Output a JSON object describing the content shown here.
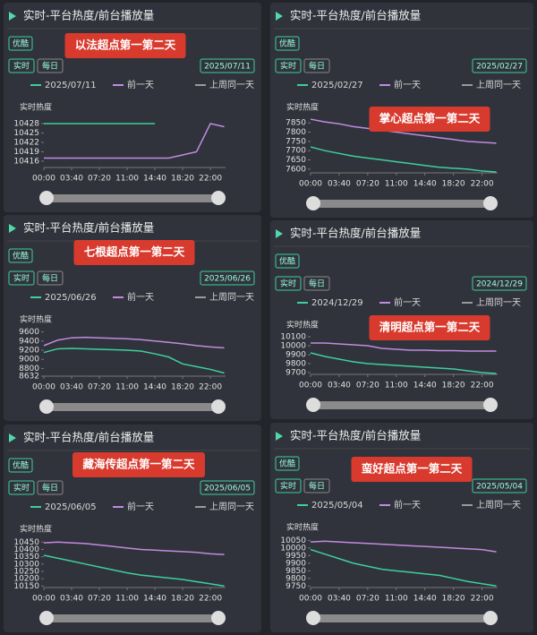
{
  "chart_data": [
    {
      "type": "line",
      "header": "实时-平台热度/前台播放量",
      "platform": "优酷",
      "modes": [
        "实时",
        "每日"
      ],
      "annotation": "以法超点第一第二天",
      "ylabel": "实时热度",
      "x": [
        0,
        110,
        220,
        330,
        440,
        550,
        660,
        770,
        880,
        990,
        1100,
        1210,
        1320,
        1430
      ],
      "xlim": [
        0,
        1440
      ],
      "xticks": [
        {
          "value": 0,
          "label": "00:00"
        },
        {
          "value": 220,
          "label": "03:40"
        },
        {
          "value": 440,
          "label": "07:20"
        },
        {
          "value": 660,
          "label": "11:00"
        },
        {
          "value": 880,
          "label": "14:40"
        },
        {
          "value": 1100,
          "label": "18:20"
        },
        {
          "value": 1320,
          "label": "22:00"
        }
      ],
      "ylim": [
        10414,
        10430
      ],
      "yticks": [
        10416,
        10419,
        10422,
        10425,
        10428
      ],
      "series": [
        {
          "name": "2025/07/11",
          "color": "#3ecf9e",
          "values": [
            10428,
            10428,
            10428,
            10428,
            10428,
            10428,
            10428,
            10428,
            10428,
            null,
            null,
            null,
            null,
            null
          ]
        },
        {
          "name": "前一天",
          "color": "#c08be0",
          "values": [
            10417,
            10417,
            10417,
            10417,
            10417,
            10417,
            10417,
            10417,
            10417,
            10417,
            10418,
            10419,
            10428,
            10427
          ]
        },
        {
          "name": "上周同一天",
          "color": "#9a9a9a",
          "values": [
            null,
            null,
            null,
            null,
            null,
            null,
            null,
            null,
            null,
            null,
            null,
            null,
            null,
            null
          ]
        }
      ]
    },
    {
      "type": "line",
      "header": "实时-平台热度/前台播放量",
      "platform": "优酷",
      "modes": [
        "实时",
        "每日"
      ],
      "annotation": "掌心超点第一第二天",
      "ylabel": "实时热度",
      "x": [
        0,
        110,
        220,
        330,
        440,
        550,
        660,
        770,
        880,
        990,
        1100,
        1210,
        1320,
        1430
      ],
      "xlim": [
        0,
        1440
      ],
      "xticks": [
        {
          "value": 0,
          "label": "00:00"
        },
        {
          "value": 220,
          "label": "03:40"
        },
        {
          "value": 440,
          "label": "07:20"
        },
        {
          "value": 660,
          "label": "11:00"
        },
        {
          "value": 880,
          "label": "14:40"
        },
        {
          "value": 1100,
          "label": "18:20"
        },
        {
          "value": 1320,
          "label": "22:00"
        }
      ],
      "ylim": [
        7580,
        7880
      ],
      "yticks": [
        7600,
        7650,
        7700,
        7750,
        7800,
        7850
      ],
      "series": [
        {
          "name": "2025/02/27",
          "color": "#3ecf9e",
          "values": [
            7720,
            7700,
            7685,
            7670,
            7660,
            7650,
            7640,
            7630,
            7620,
            7610,
            7605,
            7600,
            7590,
            7585
          ]
        },
        {
          "name": "前一天",
          "color": "#c08be0",
          "values": [
            7870,
            7855,
            7845,
            7830,
            7820,
            7810,
            7800,
            7790,
            7780,
            7770,
            7760,
            7750,
            7745,
            7740
          ]
        },
        {
          "name": "上周同一天",
          "color": "#9a9a9a",
          "values": [
            null,
            null,
            null,
            null,
            null,
            null,
            null,
            null,
            null,
            null,
            null,
            null,
            null,
            null
          ]
        }
      ]
    },
    {
      "type": "line",
      "header": "实时-平台热度/前台播放量",
      "platform": "优酷",
      "modes": [
        "实时",
        "每日"
      ],
      "annotation": "七根超点第一第二天",
      "ylabel": "实时热度",
      "x": [
        0,
        110,
        220,
        330,
        440,
        550,
        660,
        770,
        880,
        990,
        1100,
        1210,
        1320,
        1430
      ],
      "xlim": [
        0,
        1440
      ],
      "xticks": [
        {
          "value": 0,
          "label": "00:00"
        },
        {
          "value": 220,
          "label": "03:40"
        },
        {
          "value": 440,
          "label": "07:20"
        },
        {
          "value": 660,
          "label": "11:00"
        },
        {
          "value": 880,
          "label": "14:40"
        },
        {
          "value": 1100,
          "label": "18:20"
        },
        {
          "value": 1320,
          "label": "22:00"
        }
      ],
      "ylim": [
        8632,
        9650
      ],
      "yticks": [
        8632,
        8800,
        9000,
        9200,
        9400,
        9600
      ],
      "series": [
        {
          "name": "2025/06/26",
          "color": "#3ecf9e",
          "values": [
            9150,
            9230,
            9240,
            9230,
            9220,
            9210,
            9200,
            9180,
            9120,
            9050,
            8900,
            8840,
            8780,
            8700
          ]
        },
        {
          "name": "前一天",
          "color": "#c08be0",
          "values": [
            9300,
            9420,
            9470,
            9480,
            9470,
            9460,
            9450,
            9430,
            9400,
            9370,
            9340,
            9300,
            9270,
            9250
          ]
        },
        {
          "name": "上周同一天",
          "color": "#9a9a9a",
          "values": [
            null,
            null,
            null,
            null,
            null,
            null,
            null,
            null,
            null,
            null,
            null,
            null,
            null,
            null
          ]
        }
      ]
    },
    {
      "type": "line",
      "header": "实时-平台热度/前台播放量",
      "platform": "优酷",
      "modes": [
        "实时",
        "每日"
      ],
      "annotation": "清明超点第一第二天",
      "ylabel": "实时热度",
      "x": [
        0,
        110,
        220,
        330,
        440,
        550,
        660,
        770,
        880,
        990,
        1100,
        1210,
        1320,
        1430
      ],
      "xlim": [
        0,
        1440
      ],
      "xticks": [
        {
          "value": 0,
          "label": "00:00"
        },
        {
          "value": 220,
          "label": "03:40"
        },
        {
          "value": 440,
          "label": "07:20"
        },
        {
          "value": 660,
          "label": "11:00"
        },
        {
          "value": 880,
          "label": "14:40"
        },
        {
          "value": 1100,
          "label": "18:20"
        },
        {
          "value": 1320,
          "label": "22:00"
        }
      ],
      "ylim": [
        9680,
        10120
      ],
      "yticks": [
        9700,
        9800,
        9900,
        10000,
        10100
      ],
      "series": [
        {
          "name": "2024/12/29",
          "color": "#3ecf9e",
          "values": [
            9920,
            9880,
            9850,
            9820,
            9800,
            9790,
            9780,
            9770,
            9760,
            9750,
            9740,
            9720,
            9700,
            9690
          ]
        },
        {
          "name": "前一天",
          "color": "#c08be0",
          "values": [
            10030,
            10030,
            10020,
            10010,
            10000,
            9970,
            9960,
            9950,
            9950,
            9945,
            9945,
            9940,
            9940,
            9940
          ]
        },
        {
          "name": "上周同一天",
          "color": "#9a9a9a",
          "values": [
            null,
            null,
            null,
            null,
            null,
            null,
            null,
            null,
            null,
            null,
            null,
            null,
            null,
            null
          ]
        }
      ]
    },
    {
      "type": "line",
      "header": "实时-平台热度/前台播放量",
      "platform": "优酷",
      "modes": [
        "实时",
        "每日"
      ],
      "annotation": "藏海传超点第一第二天",
      "ylabel": "实时热度",
      "x": [
        0,
        110,
        220,
        330,
        440,
        550,
        660,
        770,
        880,
        990,
        1100,
        1210,
        1320,
        1430
      ],
      "xlim": [
        0,
        1440
      ],
      "xticks": [
        {
          "value": 0,
          "label": "00:00"
        },
        {
          "value": 220,
          "label": "03:40"
        },
        {
          "value": 440,
          "label": "07:20"
        },
        {
          "value": 660,
          "label": "11:00"
        },
        {
          "value": 880,
          "label": "14:40"
        },
        {
          "value": 1100,
          "label": "18:20"
        },
        {
          "value": 1320,
          "label": "22:00"
        }
      ],
      "ylim": [
        10140,
        10470
      ],
      "yticks": [
        10150,
        10200,
        10250,
        10300,
        10350,
        10400,
        10450
      ],
      "series": [
        {
          "name": "2025/06/05",
          "color": "#3ecf9e",
          "values": [
            10360,
            10340,
            10320,
            10300,
            10280,
            10260,
            10240,
            10225,
            10215,
            10205,
            10195,
            10180,
            10165,
            10150
          ]
        },
        {
          "name": "前一天",
          "color": "#c08be0",
          "values": [
            10445,
            10450,
            10445,
            10440,
            10430,
            10420,
            10410,
            10400,
            10395,
            10390,
            10385,
            10380,
            10370,
            10365
          ]
        },
        {
          "name": "上周同一天",
          "color": "#9a9a9a",
          "values": [
            null,
            null,
            null,
            null,
            null,
            null,
            null,
            null,
            null,
            null,
            null,
            null,
            null,
            null
          ]
        }
      ]
    },
    {
      "type": "line",
      "header": "实时-平台热度/前台播放量",
      "platform": "优酷",
      "modes": [
        "实时",
        "每日"
      ],
      "annotation": "蛮好超点第一第二天",
      "ylabel": "实时热度",
      "x": [
        0,
        110,
        220,
        330,
        440,
        550,
        660,
        770,
        880,
        990,
        1100,
        1210,
        1320,
        1430
      ],
      "xlim": [
        0,
        1440
      ],
      "xticks": [
        {
          "value": 0,
          "label": "00:00"
        },
        {
          "value": 220,
          "label": "03:40"
        },
        {
          "value": 440,
          "label": "07:20"
        },
        {
          "value": 660,
          "label": "11:00"
        },
        {
          "value": 880,
          "label": "14:40"
        },
        {
          "value": 1100,
          "label": "18:20"
        },
        {
          "value": 1320,
          "label": "22:00"
        }
      ],
      "ylim": [
        9740,
        10070
      ],
      "yticks": [
        9750,
        9800,
        9850,
        9900,
        9950,
        10000,
        10050
      ],
      "series": [
        {
          "name": "2025/05/04",
          "color": "#3ecf9e",
          "values": [
            9990,
            9960,
            9930,
            9900,
            9880,
            9860,
            9850,
            9840,
            9830,
            9820,
            9800,
            9780,
            9765,
            9750
          ]
        },
        {
          "name": "前一天",
          "color": "#c08be0",
          "values": [
            10040,
            10045,
            10040,
            10035,
            10030,
            10025,
            10020,
            10015,
            10010,
            10005,
            10000,
            9995,
            9990,
            9975
          ]
        },
        {
          "name": "上周同一天",
          "color": "#9a9a9a",
          "values": [
            null,
            null,
            null,
            null,
            null,
            null,
            null,
            null,
            null,
            null,
            null,
            null,
            null,
            null
          ]
        }
      ]
    }
  ]
}
